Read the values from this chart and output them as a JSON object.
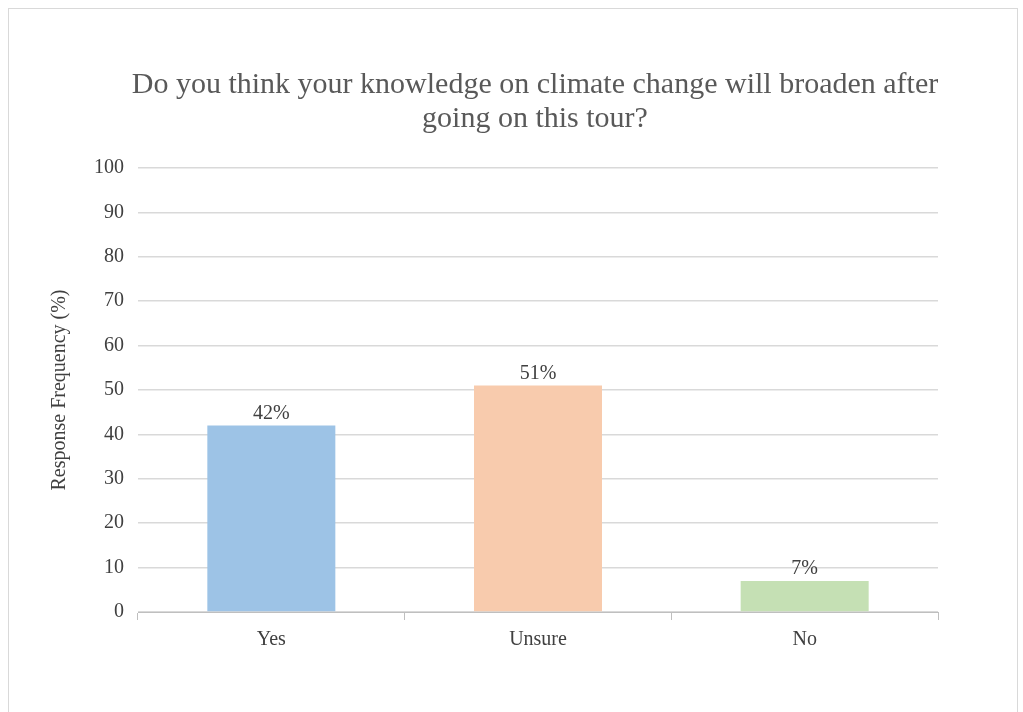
{
  "chart_data": {
    "type": "bar",
    "title": "Do you think your knowledge on climate change will broaden after going on this tour?",
    "ylabel": "Response Frequency (%)",
    "categories": [
      "Yes",
      "Unsure",
      "No"
    ],
    "values": [
      42,
      51,
      7
    ],
    "colors": [
      "#9dc3e6",
      "#f8cbad",
      "#c5e0b4"
    ],
    "value_labels": [
      "42%",
      "51%",
      "7%"
    ],
    "ylim": [
      0,
      100
    ],
    "yticks": [
      0,
      10,
      20,
      30,
      40,
      50,
      60,
      70,
      80,
      90,
      100
    ],
    "grid": "y",
    "legend": false
  }
}
